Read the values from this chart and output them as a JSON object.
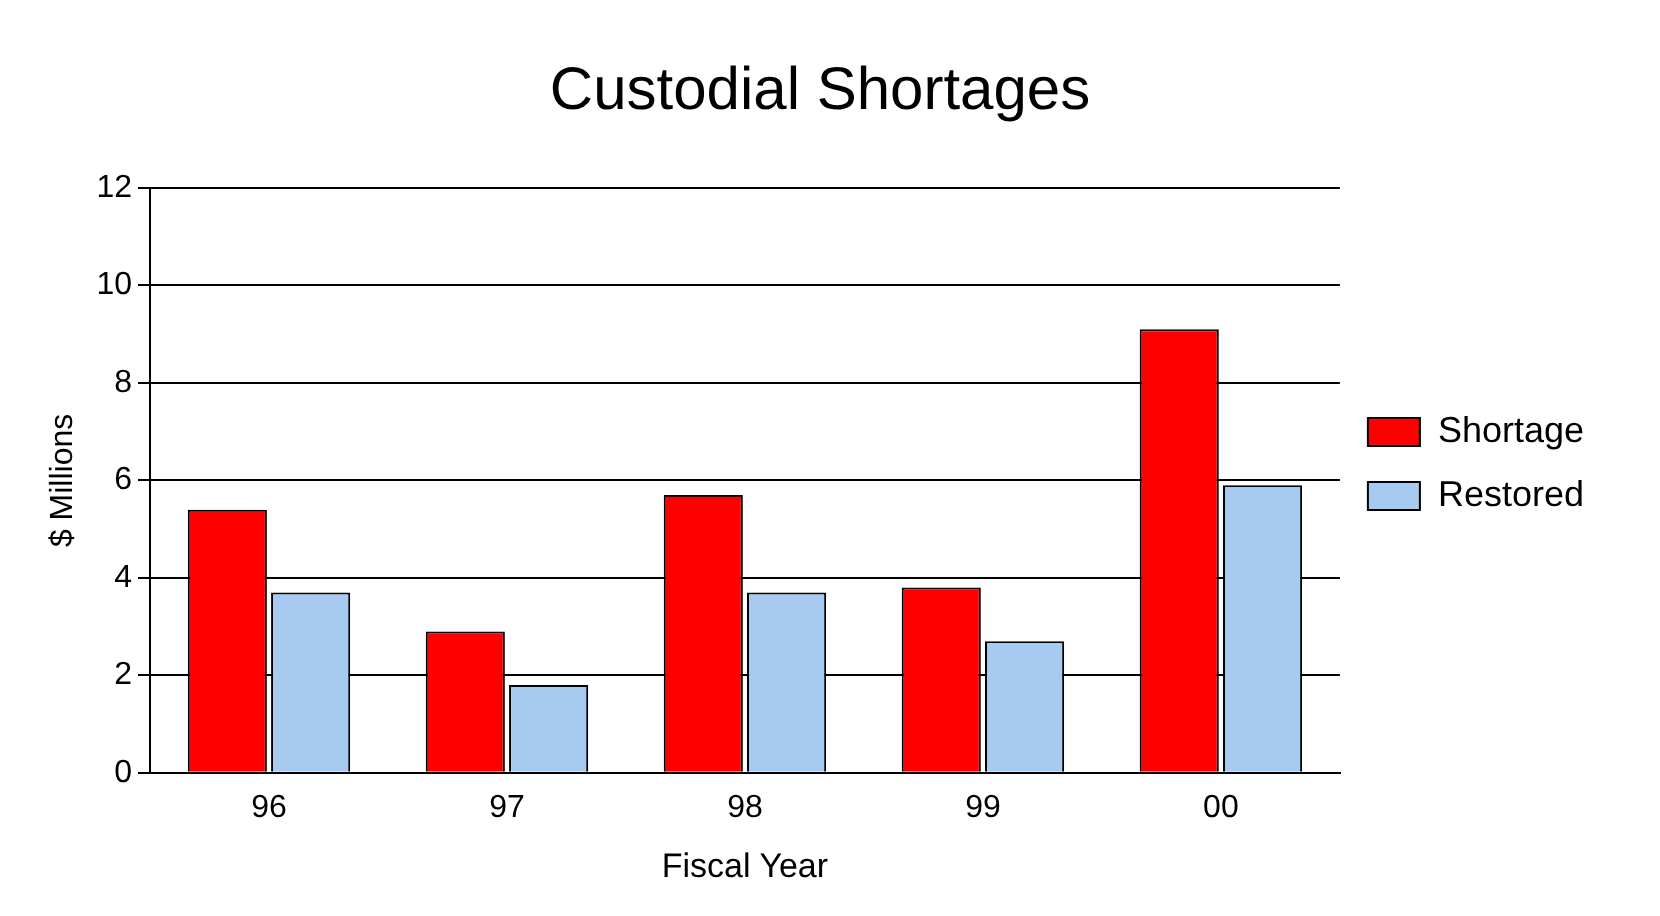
{
  "chart_data": {
    "type": "bar",
    "title": "Custodial Shortages",
    "xlabel": "Fiscal Year",
    "ylabel": "$ Millions",
    "categories": [
      "96",
      "97",
      "98",
      "99",
      "00"
    ],
    "series": [
      {
        "name": "Shortage",
        "color": "#ff0000",
        "values": [
          5.4,
          2.9,
          5.7,
          3.8,
          9.1
        ]
      },
      {
        "name": "Restored",
        "color": "#a6caf0",
        "values": [
          3.7,
          1.8,
          3.7,
          2.7,
          5.9
        ]
      }
    ],
    "ylim": [
      0,
      12
    ],
    "yticks": [
      0,
      2,
      4,
      6,
      8,
      10,
      12
    ],
    "grid": "y",
    "legend": "right"
  }
}
